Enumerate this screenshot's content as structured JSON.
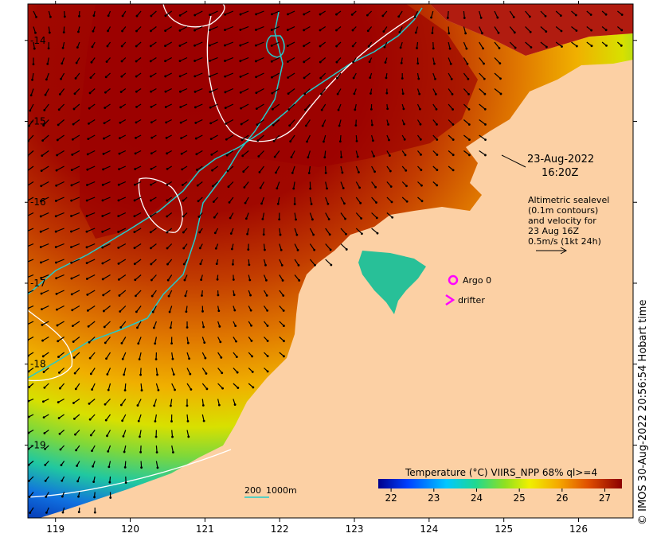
{
  "map": {
    "x_ticks": [
      "119",
      "120",
      "121",
      "122",
      "123",
      "124",
      "125",
      "126"
    ],
    "y_ticks": [
      "-14",
      "-15",
      "-16",
      "-17",
      "-18",
      "-19"
    ],
    "x_range": [
      118.63,
      126.73
    ],
    "y_range": [
      -19.9,
      -13.55
    ]
  },
  "annotation": {
    "date": "23-Aug-2022",
    "time": "16:20Z",
    "altimetry_lines": [
      "Altimetric sealevel",
      "(0.1m contours)",
      "and velocity for",
      "23 Aug 16Z",
      "0.5m/s (1kt 24h)"
    ]
  },
  "markers": {
    "argo_label": "Argo 0",
    "drifter_label": "drifter",
    "marker_color": "#ff00ff"
  },
  "scale_legend": {
    "label_200": "200",
    "label_1000": "1000m",
    "contour_color": "#22cccc"
  },
  "colorbar": {
    "title": "Temperature (°C) VIIRS_NPP 68% ql>=4",
    "ticks": [
      "22",
      "23",
      "24",
      "25",
      "26",
      "27"
    ],
    "range": [
      21.7,
      27.4
    ]
  },
  "copyright": "© IMOS 30-Aug-2022 20:56:54 Hobart time",
  "colors": {
    "land": "#fcd0a4",
    "warm": "#9b0000",
    "cool": "#0020a0"
  }
}
